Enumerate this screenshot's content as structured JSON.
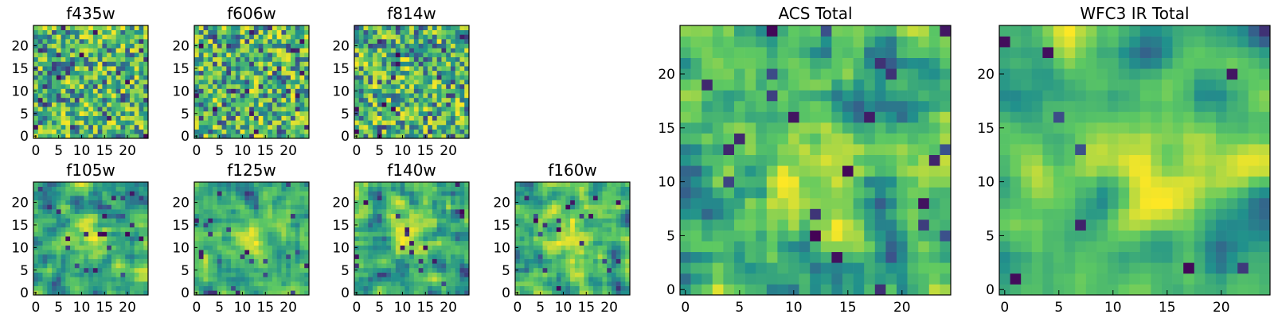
{
  "figure": {
    "colormap": [
      "#440154",
      "#3b528b",
      "#21918c",
      "#5ec962",
      "#fde725"
    ]
  },
  "chart_data": [
    {
      "type": "heatmap",
      "title": "f435w",
      "grid": [
        25,
        25
      ],
      "xlim": [
        -0.5,
        24.5
      ],
      "ylim": [
        -0.5,
        24.5
      ],
      "xticks": [
        0,
        5,
        10,
        15,
        20
      ],
      "yticks": [
        0,
        5,
        10,
        15,
        20
      ],
      "xlabel": "",
      "ylabel": "",
      "values": "pixel noise map, 25x25, mostly green-yellow with scattered dark pixels"
    },
    {
      "type": "heatmap",
      "title": "f606w",
      "grid": [
        25,
        25
      ],
      "xlim": [
        -0.5,
        24.5
      ],
      "ylim": [
        -0.5,
        24.5
      ],
      "xticks": [
        0,
        5,
        10,
        15,
        20
      ],
      "yticks": [
        0,
        5,
        10,
        15,
        20
      ],
      "xlabel": "",
      "ylabel": "",
      "values": "pixel noise map, 25x25"
    },
    {
      "type": "heatmap",
      "title": "f814w",
      "grid": [
        25,
        25
      ],
      "xlim": [
        -0.5,
        24.5
      ],
      "ylim": [
        -0.5,
        24.5
      ],
      "xticks": [
        0,
        5,
        10,
        15,
        20
      ],
      "yticks": [
        0,
        5,
        10,
        15,
        20
      ],
      "xlabel": "",
      "ylabel": "",
      "values": "pixel noise map, 25x25"
    },
    {
      "type": "heatmap",
      "title": "f105w",
      "grid": [
        25,
        25
      ],
      "xlim": [
        -0.5,
        24.5
      ],
      "ylim": [
        -0.5,
        24.5
      ],
      "xticks": [
        0,
        5,
        10,
        15,
        20
      ],
      "yticks": [
        0,
        5,
        10,
        15,
        20
      ],
      "xlabel": "",
      "ylabel": "",
      "values": "smoother pixel map, 25x25, bright near center"
    },
    {
      "type": "heatmap",
      "title": "f125w",
      "grid": [
        25,
        25
      ],
      "xlim": [
        -0.5,
        24.5
      ],
      "ylim": [
        -0.5,
        24.5
      ],
      "xticks": [
        0,
        5,
        10,
        15,
        20
      ],
      "yticks": [
        0,
        5,
        10,
        15,
        20
      ],
      "xlabel": "",
      "ylabel": "",
      "values": "smoother pixel map, 25x25"
    },
    {
      "type": "heatmap",
      "title": "f140w",
      "grid": [
        25,
        25
      ],
      "xlim": [
        -0.5,
        24.5
      ],
      "ylim": [
        -0.5,
        24.5
      ],
      "xticks": [
        0,
        5,
        10,
        15,
        20
      ],
      "yticks": [
        0,
        5,
        10,
        15,
        20
      ],
      "xlabel": "",
      "ylabel": "",
      "values": "smoother pixel map, 25x25"
    },
    {
      "type": "heatmap",
      "title": "f160w",
      "grid": [
        25,
        25
      ],
      "xlim": [
        -0.5,
        24.5
      ],
      "ylim": [
        -0.5,
        24.5
      ],
      "xticks": [
        0,
        5,
        10,
        15,
        20
      ],
      "yticks": [
        0,
        5,
        10,
        15,
        20
      ],
      "xlabel": "",
      "ylabel": "",
      "values": "smoother pixel map, 25x25"
    },
    {
      "type": "heatmap",
      "title": "ACS Total",
      "grid": [
        25,
        25
      ],
      "xlim": [
        -0.5,
        24.5
      ],
      "ylim": [
        -0.5,
        24.5
      ],
      "xticks": [
        0,
        5,
        10,
        15,
        20
      ],
      "yticks": [
        0,
        5,
        10,
        15,
        20
      ],
      "xlabel": "",
      "ylabel": "",
      "values": "combined ACS pixel map, 25x25"
    },
    {
      "type": "heatmap",
      "title": "WFC3 IR Total",
      "grid": [
        25,
        25
      ],
      "xlim": [
        -0.5,
        24.5
      ],
      "ylim": [
        -0.5,
        24.5
      ],
      "xticks": [
        0,
        5,
        10,
        15,
        20
      ],
      "yticks": [
        0,
        5,
        10,
        15,
        20
      ],
      "xlabel": "",
      "ylabel": "",
      "values": "combined WFC3 IR pixel map, 25x25, bright blob near center"
    }
  ]
}
